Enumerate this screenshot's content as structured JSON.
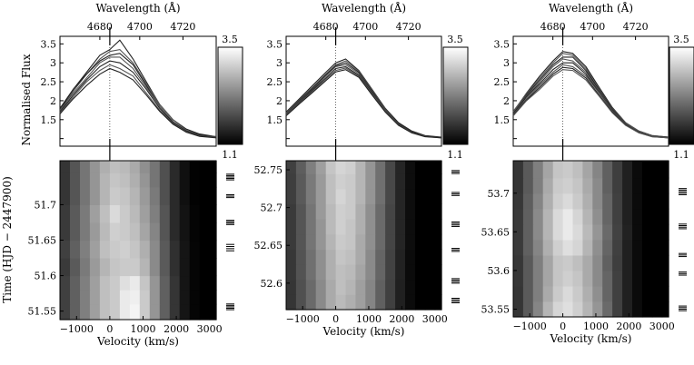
{
  "chart_data": [
    {
      "type": "line",
      "panel": "left",
      "wavelength_label": "Wavelength (Å)",
      "wavelength_ticks": [
        "4680",
        "4700",
        "4720"
      ],
      "ylabel": "Normalised Flux",
      "yticks": [
        "1.5",
        "2",
        "2.5",
        "3",
        "3.5"
      ],
      "ylim": [
        0.8,
        3.7
      ],
      "xlim": [
        -1500,
        3200
      ],
      "colorbar_max": "3.5",
      "colorbar_min": "1.1",
      "x": [
        -1500,
        -1100,
        -700,
        -300,
        0,
        300,
        700,
        1100,
        1500,
        1900,
        2300,
        2700,
        3200
      ],
      "spectra": [
        [
          1.75,
          2.3,
          2.75,
          3.2,
          3.35,
          3.6,
          3.1,
          2.5,
          1.9,
          1.5,
          1.25,
          1.12,
          1.05
        ],
        [
          1.7,
          2.25,
          2.7,
          3.1,
          3.3,
          3.35,
          3.0,
          2.45,
          1.9,
          1.5,
          1.22,
          1.1,
          1.05
        ],
        [
          1.8,
          2.3,
          2.7,
          3.05,
          3.2,
          3.25,
          2.95,
          2.4,
          1.85,
          1.45,
          1.2,
          1.1,
          1.04
        ],
        [
          1.75,
          2.2,
          2.6,
          3.0,
          3.15,
          3.15,
          2.85,
          2.35,
          1.85,
          1.45,
          1.2,
          1.08,
          1.03
        ],
        [
          1.7,
          2.15,
          2.55,
          2.9,
          3.05,
          3.0,
          2.75,
          2.3,
          1.8,
          1.42,
          1.2,
          1.08,
          1.03
        ],
        [
          1.68,
          2.1,
          2.5,
          2.8,
          2.95,
          2.85,
          2.65,
          2.2,
          1.75,
          1.4,
          1.18,
          1.07,
          1.03
        ],
        [
          1.65,
          2.05,
          2.4,
          2.7,
          2.85,
          2.75,
          2.55,
          2.15,
          1.72,
          1.38,
          1.17,
          1.06,
          1.02
        ]
      ],
      "time_label": "Time (HJD − 2447900)",
      "time_ticks": [
        "51.7",
        "51.65",
        "51.6",
        "51.55"
      ],
      "time_tick_values": [
        51.7,
        51.65,
        51.6,
        51.55
      ],
      "tlim": [
        51.538,
        51.762
      ],
      "velocity_label": "Velocity (km/s)",
      "velocity_ticks": [
        "−1000",
        "0",
        "1000",
        "2000",
        "3000"
      ],
      "velocity_tick_values": [
        -1000,
        0,
        1000,
        2000,
        3000
      ],
      "trail_velocities": [
        -1500,
        -1200,
        -900,
        -600,
        -300,
        0,
        300,
        600,
        900,
        1200,
        1500,
        1800,
        2100,
        2400,
        2700,
        3000,
        3200
      ],
      "trail_times": [
        51.538,
        51.56,
        51.58,
        51.6,
        51.625,
        51.65,
        51.675,
        51.7,
        51.725,
        51.745,
        51.762
      ],
      "trail": [
        [
          1.7,
          2.0,
          2.3,
          2.6,
          2.9,
          3.0,
          3.3,
          3.4,
          3.0,
          2.5,
          2.0,
          1.6,
          1.3,
          1.15,
          1.1,
          1.05
        ],
        [
          1.7,
          2.0,
          2.3,
          2.6,
          2.9,
          3.0,
          3.3,
          3.35,
          3.0,
          2.5,
          2.0,
          1.6,
          1.3,
          1.15,
          1.1,
          1.05
        ],
        [
          1.7,
          2.0,
          2.3,
          2.6,
          2.9,
          3.0,
          3.2,
          3.3,
          2.95,
          2.5,
          2.0,
          1.6,
          1.3,
          1.15,
          1.1,
          1.05
        ],
        [
          1.65,
          1.95,
          2.25,
          2.55,
          2.8,
          2.95,
          3.0,
          3.0,
          2.8,
          2.4,
          1.95,
          1.55,
          1.3,
          1.15,
          1.08,
          1.04
        ],
        [
          1.7,
          2.0,
          2.3,
          2.6,
          2.9,
          3.0,
          3.05,
          2.95,
          2.75,
          2.4,
          1.95,
          1.55,
          1.3,
          1.15,
          1.08,
          1.04
        ],
        [
          1.65,
          1.95,
          2.25,
          2.55,
          2.85,
          3.05,
          3.0,
          2.9,
          2.65,
          2.35,
          1.9,
          1.5,
          1.28,
          1.14,
          1.07,
          1.04
        ],
        [
          1.65,
          1.95,
          2.25,
          2.6,
          2.9,
          3.15,
          3.0,
          2.85,
          2.6,
          2.3,
          1.9,
          1.5,
          1.28,
          1.14,
          1.07,
          1.04
        ],
        [
          1.6,
          1.9,
          2.2,
          2.5,
          2.8,
          3.0,
          2.95,
          2.8,
          2.55,
          2.25,
          1.85,
          1.5,
          1.25,
          1.12,
          1.06,
          1.03
        ],
        [
          1.6,
          1.9,
          2.2,
          2.5,
          2.8,
          2.95,
          2.9,
          2.75,
          2.5,
          2.2,
          1.85,
          1.5,
          1.25,
          1.12,
          1.06,
          1.03
        ],
        [
          1.6,
          1.9,
          2.2,
          2.5,
          2.75,
          2.9,
          2.85,
          2.7,
          2.45,
          2.2,
          1.85,
          1.5,
          1.25,
          1.12,
          1.06,
          1.03
        ]
      ],
      "epoch_times": [
        51.552,
        51.554,
        51.556,
        51.558,
        51.56,
        51.635,
        51.638,
        51.641,
        51.644,
        51.672,
        51.674,
        51.676,
        51.678,
        51.71,
        51.712,
        51.714,
        51.735,
        51.737,
        51.739,
        51.741,
        51.743
      ]
    },
    {
      "type": "line",
      "panel": "middle",
      "wavelength_label": "Wavelength (Å)",
      "wavelength_ticks": [
        "4680",
        "4700",
        "4720"
      ],
      "yticks": [
        "1.5",
        "2",
        "2.5",
        "3",
        "3.5"
      ],
      "ylim": [
        0.8,
        3.7
      ],
      "xlim": [
        -1500,
        3200
      ],
      "colorbar_max": "3.5",
      "colorbar_min": "1.1",
      "x": [
        -1500,
        -1100,
        -700,
        -300,
        0,
        300,
        700,
        1100,
        1500,
        1900,
        2300,
        2700,
        3200
      ],
      "spectra": [
        [
          1.7,
          2.05,
          2.4,
          2.75,
          3.0,
          3.1,
          2.8,
          2.3,
          1.8,
          1.42,
          1.2,
          1.08,
          1.04
        ],
        [
          1.68,
          2.02,
          2.35,
          2.7,
          2.95,
          3.05,
          2.78,
          2.28,
          1.78,
          1.4,
          1.18,
          1.07,
          1.03
        ],
        [
          1.66,
          2.0,
          2.33,
          2.68,
          2.92,
          3.0,
          2.75,
          2.25,
          1.76,
          1.4,
          1.18,
          1.07,
          1.03
        ],
        [
          1.65,
          1.98,
          2.3,
          2.65,
          2.9,
          2.95,
          2.72,
          2.22,
          1.75,
          1.38,
          1.17,
          1.06,
          1.03
        ],
        [
          1.63,
          1.96,
          2.28,
          2.6,
          2.85,
          2.9,
          2.68,
          2.2,
          1.73,
          1.37,
          1.17,
          1.06,
          1.03
        ],
        [
          1.62,
          1.94,
          2.25,
          2.57,
          2.8,
          2.86,
          2.65,
          2.18,
          1.72,
          1.36,
          1.16,
          1.06,
          1.02
        ],
        [
          1.6,
          1.92,
          2.22,
          2.53,
          2.76,
          2.82,
          2.62,
          2.15,
          1.7,
          1.35,
          1.15,
          1.05,
          1.02
        ]
      ],
      "time_ticks": [
        "52.75",
        "52.7",
        "52.65",
        "52.6"
      ],
      "time_tick_values": [
        52.75,
        52.7,
        52.65,
        52.6
      ],
      "tlim": [
        52.565,
        52.762
      ],
      "velocity_label": "Velocity (km/s)",
      "velocity_ticks": [
        "−1000",
        "0",
        "1000",
        "2000",
        "3000"
      ],
      "velocity_tick_values": [
        -1000,
        0,
        1000,
        2000,
        3000
      ],
      "trail_velocities": [
        -1500,
        -1200,
        -900,
        -600,
        -300,
        0,
        300,
        600,
        900,
        1200,
        1500,
        1800,
        2100,
        2400,
        2700,
        3000,
        3200
      ],
      "trail_times": [
        52.565,
        52.585,
        52.605,
        52.625,
        52.645,
        52.665,
        52.685,
        52.705,
        52.725,
        52.745,
        52.762
      ],
      "trail": [
        [
          1.6,
          1.85,
          2.1,
          2.4,
          2.7,
          2.85,
          2.75,
          2.6,
          2.35,
          2.0,
          1.7,
          1.4,
          1.2,
          1.1,
          1.05,
          1.03
        ],
        [
          1.6,
          1.85,
          2.1,
          2.4,
          2.7,
          2.9,
          2.8,
          2.6,
          2.35,
          2.0,
          1.7,
          1.4,
          1.2,
          1.1,
          1.05,
          1.03
        ],
        [
          1.62,
          1.88,
          2.15,
          2.45,
          2.75,
          2.9,
          2.85,
          2.65,
          2.4,
          2.05,
          1.72,
          1.42,
          1.2,
          1.1,
          1.05,
          1.03
        ],
        [
          1.62,
          1.88,
          2.15,
          2.45,
          2.75,
          2.95,
          2.9,
          2.7,
          2.4,
          2.05,
          1.72,
          1.42,
          1.2,
          1.1,
          1.05,
          1.03
        ],
        [
          1.65,
          1.9,
          2.2,
          2.5,
          2.8,
          3.0,
          2.95,
          2.7,
          2.45,
          2.1,
          1.75,
          1.45,
          1.22,
          1.1,
          1.05,
          1.03
        ],
        [
          1.65,
          1.9,
          2.2,
          2.5,
          2.85,
          3.05,
          2.95,
          2.75,
          2.45,
          2.1,
          1.75,
          1.45,
          1.22,
          1.1,
          1.05,
          1.03
        ],
        [
          1.65,
          1.9,
          2.2,
          2.55,
          2.85,
          3.05,
          3.0,
          2.75,
          2.45,
          2.1,
          1.75,
          1.45,
          1.22,
          1.1,
          1.05,
          1.03
        ],
        [
          1.68,
          1.95,
          2.25,
          2.55,
          2.9,
          3.1,
          3.0,
          2.8,
          2.5,
          2.15,
          1.78,
          1.45,
          1.22,
          1.1,
          1.05,
          1.03
        ],
        [
          1.68,
          1.95,
          2.25,
          2.55,
          2.9,
          3.05,
          3.0,
          2.8,
          2.5,
          2.15,
          1.78,
          1.45,
          1.22,
          1.1,
          1.05,
          1.03
        ],
        [
          1.7,
          1.98,
          2.3,
          2.6,
          2.95,
          3.1,
          3.05,
          2.8,
          2.5,
          2.15,
          1.78,
          1.45,
          1.22,
          1.1,
          1.05,
          1.03
        ]
      ],
      "epoch_times": [
        52.574,
        52.576,
        52.578,
        52.58,
        52.6,
        52.602,
        52.604,
        52.606,
        52.642,
        52.644,
        52.646,
        52.675,
        52.677,
        52.679,
        52.681,
        52.716,
        52.718,
        52.72,
        52.745,
        52.747,
        52.749
      ]
    },
    {
      "type": "line",
      "panel": "right",
      "wavelength_label": "Wavelength (Å)",
      "wavelength_ticks": [
        "4680",
        "4700",
        "4720"
      ],
      "yticks": [
        "1.5",
        "2",
        "2.5",
        "3",
        "3.5"
      ],
      "ylim": [
        0.8,
        3.7
      ],
      "xlim": [
        -1500,
        3200
      ],
      "colorbar_max": "3.5",
      "colorbar_min": "1.1",
      "x": [
        -1500,
        -1100,
        -700,
        -300,
        0,
        300,
        700,
        1100,
        1500,
        1900,
        2300,
        2700,
        3200
      ],
      "spectra": [
        [
          1.7,
          2.2,
          2.65,
          3.05,
          3.3,
          3.25,
          2.9,
          2.35,
          1.82,
          1.42,
          1.2,
          1.08,
          1.04
        ],
        [
          1.72,
          2.18,
          2.6,
          3.0,
          3.25,
          3.2,
          2.85,
          2.3,
          1.8,
          1.42,
          1.2,
          1.08,
          1.04
        ],
        [
          1.68,
          2.15,
          2.55,
          2.95,
          3.15,
          3.15,
          2.8,
          2.28,
          1.78,
          1.4,
          1.18,
          1.07,
          1.03
        ],
        [
          1.7,
          2.12,
          2.5,
          2.9,
          3.1,
          3.05,
          2.75,
          2.25,
          1.76,
          1.4,
          1.18,
          1.07,
          1.03
        ],
        [
          1.66,
          2.1,
          2.45,
          2.82,
          3.0,
          3.0,
          2.7,
          2.22,
          1.75,
          1.38,
          1.17,
          1.06,
          1.03
        ],
        [
          1.64,
          2.05,
          2.4,
          2.75,
          2.95,
          2.9,
          2.65,
          2.2,
          1.73,
          1.37,
          1.17,
          1.06,
          1.02
        ],
        [
          1.62,
          2.02,
          2.35,
          2.7,
          2.88,
          2.85,
          2.6,
          2.15,
          1.7,
          1.36,
          1.16,
          1.05,
          1.02
        ],
        [
          1.6,
          2.0,
          2.3,
          2.65,
          2.82,
          2.8,
          2.55,
          2.12,
          1.68,
          1.35,
          1.15,
          1.05,
          1.02
        ]
      ],
      "time_ticks": [
        "53.7",
        "53.65",
        "53.6",
        "53.55"
      ],
      "time_tick_values": [
        53.7,
        53.65,
        53.6,
        53.55
      ],
      "tlim": [
        53.54,
        53.742
      ],
      "velocity_label": "Velocity (km/s)",
      "velocity_ticks": [
        "−1000",
        "0",
        "1000",
        "2000",
        "3000"
      ],
      "velocity_tick_values": [
        -1000,
        0,
        1000,
        2000,
        3000
      ],
      "trail_velocities": [
        -1500,
        -1200,
        -900,
        -600,
        -300,
        0,
        300,
        600,
        900,
        1200,
        1500,
        1800,
        2100,
        2400,
        2700,
        3000,
        3200
      ],
      "trail_times": [
        53.54,
        53.56,
        53.58,
        53.6,
        53.62,
        53.64,
        53.66,
        53.68,
        53.7,
        53.72,
        53.742
      ],
      "trail": [
        [
          1.6,
          1.95,
          2.35,
          2.8,
          3.1,
          3.2,
          3.05,
          2.8,
          2.5,
          2.1,
          1.7,
          1.4,
          1.2,
          1.1,
          1.05,
          1.03
        ],
        [
          1.6,
          1.95,
          2.3,
          2.7,
          3.0,
          3.15,
          3.0,
          2.75,
          2.45,
          2.05,
          1.7,
          1.4,
          1.2,
          1.1,
          1.05,
          1.03
        ],
        [
          1.62,
          1.95,
          2.3,
          2.65,
          2.95,
          3.05,
          2.95,
          2.7,
          2.4,
          2.05,
          1.7,
          1.4,
          1.2,
          1.1,
          1.05,
          1.03
        ],
        [
          1.62,
          1.95,
          2.3,
          2.65,
          2.95,
          3.0,
          2.9,
          2.7,
          2.4,
          2.0,
          1.68,
          1.4,
          1.2,
          1.1,
          1.05,
          1.03
        ],
        [
          1.65,
          2.0,
          2.35,
          2.75,
          3.05,
          3.2,
          3.1,
          2.8,
          2.45,
          2.05,
          1.7,
          1.4,
          1.2,
          1.1,
          1.05,
          1.03
        ],
        [
          1.65,
          2.0,
          2.4,
          2.8,
          3.15,
          3.3,
          3.15,
          2.85,
          2.5,
          2.1,
          1.72,
          1.42,
          1.2,
          1.1,
          1.05,
          1.03
        ],
        [
          1.65,
          2.0,
          2.4,
          2.8,
          3.15,
          3.3,
          3.1,
          2.8,
          2.45,
          2.05,
          1.7,
          1.4,
          1.2,
          1.1,
          1.05,
          1.03
        ],
        [
          1.62,
          1.98,
          2.35,
          2.75,
          3.05,
          3.15,
          3.0,
          2.75,
          2.4,
          2.05,
          1.7,
          1.4,
          1.2,
          1.1,
          1.05,
          1.03
        ],
        [
          1.6,
          1.95,
          2.3,
          2.7,
          3.0,
          3.05,
          2.95,
          2.7,
          2.4,
          2.0,
          1.68,
          1.4,
          1.2,
          1.1,
          1.05,
          1.03
        ],
        [
          1.6,
          1.95,
          2.3,
          2.65,
          2.95,
          3.0,
          2.9,
          2.65,
          2.35,
          2.0,
          1.68,
          1.4,
          1.2,
          1.1,
          1.05,
          1.03
        ]
      ],
      "epoch_times": [
        53.548,
        53.55,
        53.552,
        53.554,
        53.594,
        53.596,
        53.598,
        53.618,
        53.62,
        53.622,
        53.654,
        53.656,
        53.658,
        53.66,
        53.698,
        53.7,
        53.702,
        53.704,
        53.706
      ]
    }
  ]
}
